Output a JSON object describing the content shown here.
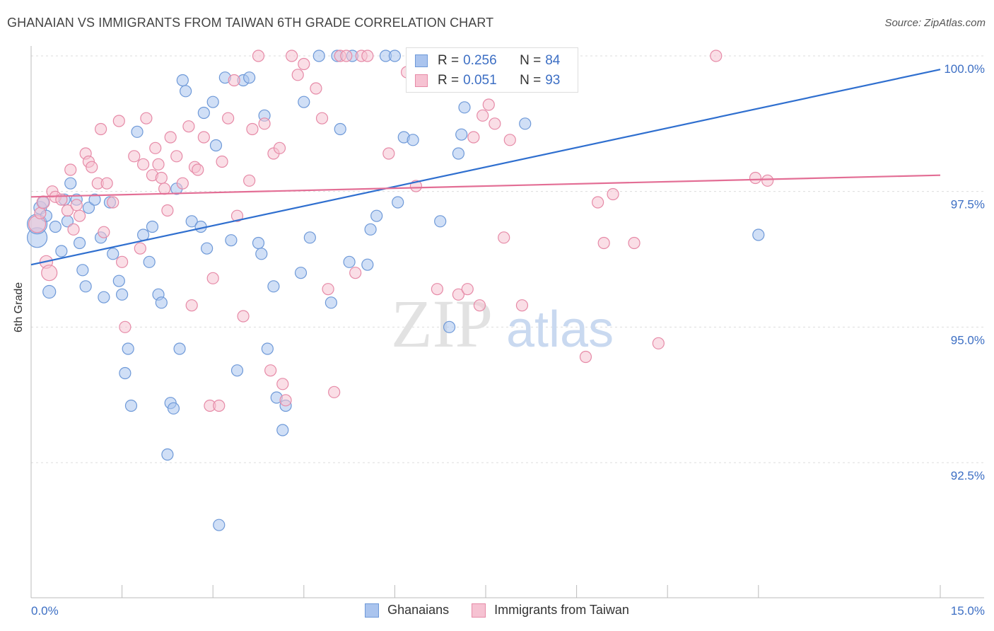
{
  "title": "GHANAIAN VS IMMIGRANTS FROM TAIWAN 6TH GRADE CORRELATION CHART",
  "source": "Source: ZipAtlas.com",
  "watermark": {
    "zip": "ZIP",
    "atlas": "atlas"
  },
  "legend": {
    "rows": [
      {
        "r_label": "R =",
        "r_value": "0.256",
        "n_label": "N =",
        "n_value": "84"
      },
      {
        "r_label": "R =",
        "r_value": "0.051",
        "n_label": "N =",
        "n_value": "93"
      }
    ]
  },
  "bottom_legend": [
    "Ghanaians",
    "Immigrants from Taiwan"
  ],
  "colors": {
    "blue_fill": "#aac4ee",
    "blue_stroke": "#6e99d8",
    "blue_line": "#2f6fcf",
    "pink_fill": "#f6c2d2",
    "pink_stroke": "#e68aa7",
    "pink_line": "#e36e95",
    "tick_label": "#3d6fc4",
    "grid": "#dddddd"
  },
  "chart_data": {
    "type": "scatter",
    "title": "GHANAIAN VS IMMIGRANTS FROM TAIWAN 6TH GRADE CORRELATION CHART",
    "xlabel": "",
    "ylabel": "6th Grade",
    "xlim": [
      0,
      15
    ],
    "ylim": [
      90.0,
      100.2
    ],
    "x_tick_labels": [
      {
        "value": 0,
        "label": "0.0%"
      },
      {
        "value": 15,
        "label": "15.0%"
      }
    ],
    "y_tick_labels": [
      {
        "value": 100.0,
        "label": "100.0%"
      },
      {
        "value": 97.5,
        "label": "97.5%"
      },
      {
        "value": 95.0,
        "label": "95.0%"
      },
      {
        "value": 92.5,
        "label": "92.5%"
      }
    ],
    "y_gridlines": [
      100.0,
      97.5,
      95.0,
      92.5
    ],
    "x_minor_ticks": [
      1.5,
      3.0,
      4.5,
      6.0,
      7.5,
      9.0,
      10.5,
      12.0
    ],
    "grid": true,
    "legend_position": "top-center",
    "series": [
      {
        "name": "Ghanaians",
        "color": "#6e99d8",
        "trend": {
          "x": [
            0,
            15
          ],
          "y": [
            96.15,
            99.75
          ]
        },
        "points": [
          [
            0.1,
            96.65,
            14
          ],
          [
            0.1,
            96.9,
            14
          ],
          [
            0.15,
            97.2,
            9
          ],
          [
            0.2,
            97.3,
            8
          ],
          [
            0.25,
            97.05,
            8
          ],
          [
            0.3,
            95.65,
            9
          ],
          [
            0.4,
            96.85,
            8
          ],
          [
            0.5,
            96.4,
            8
          ],
          [
            0.55,
            97.35,
            8
          ],
          [
            0.6,
            96.95,
            8
          ],
          [
            0.65,
            97.65,
            8
          ],
          [
            0.75,
            97.35,
            8
          ],
          [
            0.8,
            96.55,
            8
          ],
          [
            0.9,
            95.75,
            8
          ],
          [
            0.85,
            96.05,
            8
          ],
          [
            0.95,
            97.2,
            8
          ],
          [
            1.05,
            97.35,
            8
          ],
          [
            1.2,
            95.55,
            8
          ],
          [
            1.15,
            96.65,
            8
          ],
          [
            1.3,
            97.3,
            8
          ],
          [
            1.35,
            96.35,
            8
          ],
          [
            1.45,
            95.85,
            8
          ],
          [
            1.5,
            95.6,
            8
          ],
          [
            1.55,
            94.15,
            8
          ],
          [
            1.6,
            94.6,
            8
          ],
          [
            1.65,
            93.55,
            8
          ],
          [
            1.75,
            98.6,
            8
          ],
          [
            1.85,
            96.7,
            8
          ],
          [
            1.95,
            96.2,
            8
          ],
          [
            2.0,
            96.85,
            8
          ],
          [
            2.1,
            95.6,
            8
          ],
          [
            2.15,
            95.45,
            8
          ],
          [
            2.25,
            92.65,
            8
          ],
          [
            2.3,
            93.6,
            8
          ],
          [
            2.35,
            93.5,
            8
          ],
          [
            2.4,
            97.55,
            8
          ],
          [
            2.45,
            94.6,
            8
          ],
          [
            2.5,
            99.55,
            8
          ],
          [
            2.55,
            99.35,
            8
          ],
          [
            2.65,
            96.95,
            8
          ],
          [
            2.8,
            96.85,
            8
          ],
          [
            2.85,
            98.95,
            8
          ],
          [
            2.9,
            96.45,
            8
          ],
          [
            3.0,
            99.15,
            8
          ],
          [
            3.05,
            98.35,
            8
          ],
          [
            3.1,
            91.35,
            8
          ],
          [
            3.2,
            99.6,
            8
          ],
          [
            3.3,
            96.6,
            8
          ],
          [
            3.4,
            94.2,
            8
          ],
          [
            3.5,
            99.55,
            8
          ],
          [
            3.6,
            99.6,
            8
          ],
          [
            3.75,
            96.55,
            8
          ],
          [
            3.8,
            96.35,
            8
          ],
          [
            3.85,
            98.9,
            8
          ],
          [
            3.9,
            94.6,
            8
          ],
          [
            4.0,
            95.75,
            8
          ],
          [
            4.05,
            93.7,
            8
          ],
          [
            4.15,
            93.1,
            8
          ],
          [
            4.2,
            93.55,
            8
          ],
          [
            4.45,
            96.0,
            8
          ],
          [
            4.5,
            99.15,
            8
          ],
          [
            4.6,
            96.65,
            8
          ],
          [
            4.75,
            100.0,
            8
          ],
          [
            4.95,
            95.45,
            8
          ],
          [
            5.05,
            100.0,
            8
          ],
          [
            5.1,
            98.65,
            8
          ],
          [
            5.25,
            96.2,
            8
          ],
          [
            5.3,
            100.0,
            8
          ],
          [
            5.55,
            96.15,
            8
          ],
          [
            5.6,
            96.8,
            8
          ],
          [
            5.7,
            97.05,
            8
          ],
          [
            5.85,
            100.0,
            8
          ],
          [
            6.0,
            100.0,
            8
          ],
          [
            6.05,
            97.3,
            8
          ],
          [
            6.15,
            98.5,
            8
          ],
          [
            6.3,
            98.45,
            8
          ],
          [
            6.55,
            99.75,
            8
          ],
          [
            6.75,
            96.95,
            8
          ],
          [
            6.9,
            95.0,
            8
          ],
          [
            7.05,
            98.2,
            8
          ],
          [
            7.1,
            98.55,
            8
          ],
          [
            7.15,
            99.05,
            8
          ],
          [
            7.3,
            100.0,
            8
          ],
          [
            8.15,
            98.75,
            8
          ],
          [
            12.0,
            96.7,
            8
          ]
        ]
      },
      {
        "name": "Immigrants from Taiwan",
        "color": "#e68aa7",
        "trend": {
          "x": [
            0,
            15
          ],
          "y": [
            97.4,
            97.8
          ]
        },
        "points": [
          [
            0.1,
            96.9,
            12
          ],
          [
            0.15,
            97.1,
            8
          ],
          [
            0.2,
            97.3,
            9
          ],
          [
            0.25,
            96.2,
            9
          ],
          [
            0.3,
            96.0,
            11
          ],
          [
            0.35,
            97.5,
            8
          ],
          [
            0.4,
            97.4,
            8
          ],
          [
            0.5,
            97.35,
            8
          ],
          [
            0.6,
            97.15,
            8
          ],
          [
            0.65,
            97.9,
            8
          ],
          [
            0.7,
            96.8,
            8
          ],
          [
            0.75,
            97.25,
            8
          ],
          [
            0.8,
            97.05,
            8
          ],
          [
            0.9,
            98.2,
            8
          ],
          [
            0.95,
            98.05,
            8
          ],
          [
            1.0,
            97.95,
            8
          ],
          [
            1.1,
            97.65,
            8
          ],
          [
            1.15,
            98.65,
            8
          ],
          [
            1.2,
            96.75,
            8
          ],
          [
            1.25,
            97.65,
            8
          ],
          [
            1.35,
            97.3,
            8
          ],
          [
            1.45,
            98.8,
            8
          ],
          [
            1.5,
            96.2,
            8
          ],
          [
            1.55,
            95.0,
            8
          ],
          [
            1.7,
            98.15,
            8
          ],
          [
            1.8,
            96.45,
            8
          ],
          [
            1.85,
            98.0,
            8
          ],
          [
            1.9,
            98.85,
            8
          ],
          [
            2.0,
            97.8,
            8
          ],
          [
            2.05,
            98.3,
            8
          ],
          [
            2.1,
            98.0,
            8
          ],
          [
            2.15,
            97.75,
            8
          ],
          [
            2.2,
            97.55,
            8
          ],
          [
            2.25,
            97.15,
            8
          ],
          [
            2.3,
            98.5,
            8
          ],
          [
            2.4,
            98.15,
            8
          ],
          [
            2.5,
            97.65,
            8
          ],
          [
            2.6,
            98.7,
            8
          ],
          [
            2.65,
            95.4,
            8
          ],
          [
            2.7,
            97.95,
            8
          ],
          [
            2.75,
            97.9,
            8
          ],
          [
            2.85,
            98.5,
            8
          ],
          [
            2.95,
            93.55,
            8
          ],
          [
            3.0,
            95.9,
            8
          ],
          [
            3.1,
            93.55,
            8
          ],
          [
            3.15,
            98.05,
            8
          ],
          [
            3.25,
            98.85,
            8
          ],
          [
            3.35,
            99.55,
            8
          ],
          [
            3.4,
            97.05,
            8
          ],
          [
            3.5,
            95.2,
            8
          ],
          [
            3.6,
            97.7,
            8
          ],
          [
            3.65,
            98.65,
            8
          ],
          [
            3.75,
            100.0,
            8
          ],
          [
            3.85,
            98.75,
            8
          ],
          [
            3.95,
            94.2,
            8
          ],
          [
            4.0,
            98.2,
            8
          ],
          [
            4.1,
            98.3,
            8
          ],
          [
            4.15,
            93.95,
            8
          ],
          [
            4.2,
            93.65,
            8
          ],
          [
            4.3,
            100.0,
            8
          ],
          [
            4.4,
            99.65,
            8
          ],
          [
            4.5,
            99.85,
            8
          ],
          [
            4.7,
            99.4,
            8
          ],
          [
            4.8,
            98.85,
            8
          ],
          [
            4.9,
            95.7,
            8
          ],
          [
            5.0,
            93.8,
            8
          ],
          [
            5.1,
            100.0,
            8
          ],
          [
            5.2,
            100.0,
            8
          ],
          [
            5.35,
            96.0,
            8
          ],
          [
            5.45,
            100.0,
            8
          ],
          [
            5.55,
            100.0,
            8
          ],
          [
            5.9,
            98.2,
            8
          ],
          [
            6.2,
            99.7,
            8
          ],
          [
            6.35,
            97.6,
            8
          ],
          [
            6.7,
            95.7,
            8
          ],
          [
            6.9,
            100.0,
            8
          ],
          [
            7.05,
            95.6,
            8
          ],
          [
            7.2,
            95.7,
            8
          ],
          [
            7.3,
            98.5,
            8
          ],
          [
            7.4,
            95.4,
            8
          ],
          [
            7.45,
            98.9,
            8
          ],
          [
            7.55,
            99.1,
            8
          ],
          [
            7.65,
            98.75,
            8
          ],
          [
            7.8,
            96.65,
            8
          ],
          [
            7.9,
            98.45,
            8
          ],
          [
            8.1,
            95.4,
            8
          ],
          [
            9.35,
            97.3,
            8
          ],
          [
            9.45,
            96.55,
            8
          ],
          [
            9.6,
            97.45,
            8
          ],
          [
            9.95,
            96.55,
            8
          ],
          [
            10.35,
            94.7,
            8
          ],
          [
            11.3,
            100.0,
            8
          ],
          [
            11.95,
            97.75,
            8
          ],
          [
            12.15,
            97.7,
            8
          ],
          [
            9.15,
            94.45,
            8
          ]
        ]
      }
    ]
  }
}
